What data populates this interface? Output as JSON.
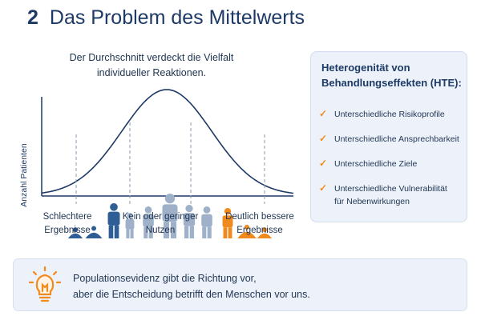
{
  "header": {
    "number": "2",
    "title": "Das Problem des Mittelwerts"
  },
  "diagram": {
    "caption_lines": [
      "Der Durchschnitt verdeckt die Vielfalt",
      "individueller Reaktionen."
    ],
    "y_axis_label": "Anzahl Patienten",
    "categories": [
      {
        "lines": [
          "Schlechtere",
          "Ergebnisse"
        ]
      },
      {
        "lines": [
          "Kein oder geringer",
          "Nutzen"
        ]
      },
      {
        "lines": [
          "Deutlich bessere",
          "Ergebnisse"
        ]
      }
    ],
    "colors": {
      "curve": "#1d3a66",
      "poor": "#2f5d95",
      "neutral": "#9fb1c9",
      "good": "#f08a1c",
      "dashed": "#8a98ad"
    },
    "people": [
      {
        "group": "poor",
        "pose": "sitting"
      },
      {
        "group": "poor",
        "pose": "sitting"
      },
      {
        "group": "poor",
        "pose": "standing"
      },
      {
        "group": "neutral",
        "pose": "standing"
      },
      {
        "group": "neutral",
        "pose": "standing"
      },
      {
        "group": "neutral",
        "pose": "standing"
      },
      {
        "group": "neutral",
        "pose": "standing"
      },
      {
        "group": "neutral",
        "pose": "standing"
      },
      {
        "group": "good",
        "pose": "standing"
      },
      {
        "group": "good",
        "pose": "sitting"
      },
      {
        "group": "good",
        "pose": "sitting"
      }
    ]
  },
  "hte": {
    "title_lines": [
      "Heterogenität von",
      "Behandlungseffekten (HTE):"
    ],
    "items": [
      {
        "lines": [
          "Unterschiedliche Risikoprofile"
        ]
      },
      {
        "lines": [
          "Unterschiedliche Ansprechbarkeit"
        ]
      },
      {
        "lines": [
          "Unterschiedliche Ziele"
        ]
      },
      {
        "lines": [
          "Unterschiedliche Vulnerabilität",
          "für Nebenwirkungen"
        ]
      }
    ],
    "check_icon": "checkmark-icon",
    "check_color": "#f08a1c"
  },
  "insight": {
    "icon": "lightbulb-icon",
    "lines": [
      "Populationsevidenz gibt die Richtung vor,",
      "aber die Entscheidung betrifft den Menschen vor uns."
    ]
  }
}
